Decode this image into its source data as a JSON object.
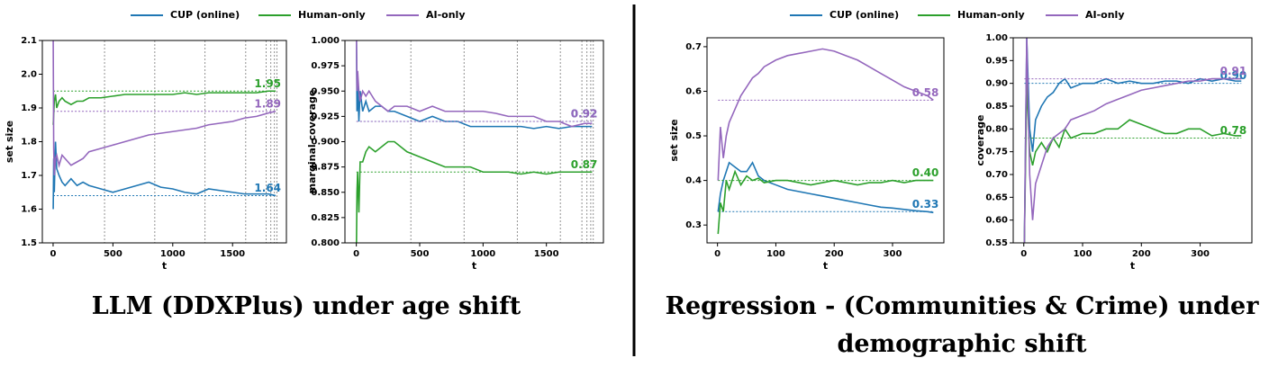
{
  "chart_data": [
    {
      "type": "line",
      "ylabel": "set size",
      "xlabel": "t",
      "legend": true,
      "xlim": [
        -90,
        1950
      ],
      "xticks": [
        0,
        500,
        1000,
        1500
      ],
      "ylim": [
        1.5,
        2.1
      ],
      "yticks": [
        1.5,
        1.6,
        1.7,
        1.8,
        1.9,
        {
          "value": 2.0,
          "label": "2.0"
        },
        2.1
      ],
      "vlines": [
        430,
        850,
        1270,
        1610,
        1780,
        1820,
        1850,
        1870
      ],
      "x": [
        1,
        5,
        10,
        20,
        30,
        50,
        75,
        100,
        150,
        200,
        250,
        300,
        400,
        500,
        600,
        700,
        800,
        900,
        1000,
        1100,
        1200,
        1300,
        1400,
        1500,
        1600,
        1700,
        1800,
        1860
      ],
      "series": [
        {
          "name": "CUP (online)",
          "color": "#1f77b4",
          "end_value": 1.64,
          "values": [
            1.6,
            1.75,
            1.65,
            1.8,
            1.72,
            1.7,
            1.68,
            1.67,
            1.69,
            1.67,
            1.68,
            1.67,
            1.66,
            1.65,
            1.66,
            1.67,
            1.68,
            1.665,
            1.66,
            1.65,
            1.645,
            1.66,
            1.655,
            1.65,
            1.645,
            1.645,
            1.645,
            1.64
          ]
        },
        {
          "name": "Human-only",
          "color": "#2ca02c",
          "end_value": 1.95,
          "values": [
            1.85,
            1.88,
            1.92,
            1.94,
            1.9,
            1.92,
            1.93,
            1.92,
            1.91,
            1.92,
            1.92,
            1.93,
            1.93,
            1.935,
            1.94,
            1.94,
            1.94,
            1.94,
            1.94,
            1.945,
            1.94,
            1.945,
            1.945,
            1.945,
            1.945,
            1.945,
            1.95,
            1.95
          ]
        },
        {
          "name": "AI-only",
          "color": "#9467bd",
          "end_value": 1.89,
          "values": [
            2.1,
            1.78,
            1.7,
            1.75,
            1.76,
            1.73,
            1.76,
            1.75,
            1.73,
            1.74,
            1.75,
            1.77,
            1.78,
            1.79,
            1.8,
            1.81,
            1.82,
            1.825,
            1.83,
            1.835,
            1.84,
            1.85,
            1.855,
            1.86,
            1.87,
            1.875,
            1.885,
            1.89
          ]
        }
      ]
    },
    {
      "type": "line",
      "ylabel": "marginal coverage",
      "xlabel": "t",
      "legend": false,
      "xlim": [
        -90,
        1950
      ],
      "xticks": [
        0,
        500,
        1000,
        1500
      ],
      "ylim": [
        0.8,
        1.0
      ],
      "yticks": [
        {
          "value": 0.8,
          "label": "0.800"
        },
        0.825,
        {
          "value": 0.85,
          "label": "0.850"
        },
        0.875,
        {
          "value": 0.9,
          "label": "0.900"
        },
        0.925,
        {
          "value": 0.95,
          "label": "0.950"
        },
        0.975,
        {
          "value": 1.0,
          "label": "1.000"
        }
      ],
      "vlines": [
        430,
        850,
        1270,
        1610,
        1780,
        1820,
        1850,
        1870
      ],
      "x": [
        1,
        5,
        10,
        20,
        30,
        50,
        75,
        100,
        150,
        200,
        250,
        300,
        400,
        500,
        600,
        700,
        800,
        900,
        1000,
        1100,
        1200,
        1300,
        1400,
        1500,
        1600,
        1700,
        1800,
        1860
      ],
      "series": [
        {
          "name": "CUP (online)",
          "color": "#1f77b4",
          "end_value": 0.92,
          "values": [
            1.0,
            0.93,
            0.96,
            0.92,
            0.95,
            0.93,
            0.94,
            0.93,
            0.935,
            0.935,
            0.93,
            0.93,
            0.925,
            0.92,
            0.925,
            0.92,
            0.92,
            0.915,
            0.915,
            0.915,
            0.915,
            0.915,
            0.913,
            0.915,
            0.913,
            0.915,
            0.915,
            0.915
          ]
        },
        {
          "name": "Human-only",
          "color": "#2ca02c",
          "end_value": 0.87,
          "values": [
            0.8,
            0.85,
            0.87,
            0.83,
            0.88,
            0.88,
            0.89,
            0.895,
            0.89,
            0.895,
            0.9,
            0.9,
            0.89,
            0.885,
            0.88,
            0.875,
            0.875,
            0.875,
            0.87,
            0.87,
            0.87,
            0.868,
            0.87,
            0.868,
            0.87,
            0.87,
            0.87,
            0.87
          ]
        },
        {
          "name": "AI-only",
          "color": "#9467bd",
          "end_value": 0.92,
          "values": [
            1.0,
            0.95,
            0.97,
            0.95,
            0.94,
            0.95,
            0.945,
            0.95,
            0.94,
            0.935,
            0.93,
            0.935,
            0.935,
            0.93,
            0.935,
            0.93,
            0.93,
            0.93,
            0.93,
            0.928,
            0.925,
            0.925,
            0.925,
            0.92,
            0.92,
            0.915,
            0.918,
            0.918
          ]
        }
      ]
    },
    {
      "type": "line",
      "ylabel": "set size",
      "xlabel": "t",
      "legend": true,
      "xlim": [
        -18,
        388
      ],
      "xticks": [
        0,
        100,
        200,
        300
      ],
      "ylim": [
        0.26,
        0.72
      ],
      "yticks": [
        0.3,
        0.4,
        0.5,
        0.6,
        0.7
      ],
      "x": [
        1,
        5,
        10,
        15,
        20,
        30,
        40,
        50,
        60,
        70,
        80,
        100,
        120,
        140,
        160,
        180,
        200,
        220,
        240,
        260,
        280,
        300,
        320,
        340,
        360,
        370
      ],
      "series": [
        {
          "name": "CUP (online)",
          "color": "#1f77b4",
          "end_value": 0.33,
          "values": [
            0.33,
            0.37,
            0.4,
            0.42,
            0.44,
            0.43,
            0.42,
            0.42,
            0.44,
            0.41,
            0.4,
            0.39,
            0.38,
            0.375,
            0.37,
            0.365,
            0.36,
            0.355,
            0.35,
            0.345,
            0.34,
            0.338,
            0.335,
            0.332,
            0.33,
            0.328
          ]
        },
        {
          "name": "Human-only",
          "color": "#2ca02c",
          "end_value": 0.4,
          "end_label": "0.40",
          "values": [
            0.28,
            0.35,
            0.33,
            0.4,
            0.38,
            0.42,
            0.39,
            0.41,
            0.4,
            0.405,
            0.395,
            0.4,
            0.4,
            0.395,
            0.39,
            0.395,
            0.4,
            0.395,
            0.39,
            0.395,
            0.395,
            0.4,
            0.395,
            0.4,
            0.4,
            0.4
          ]
        },
        {
          "name": "AI-only",
          "color": "#9467bd",
          "end_value": 0.58,
          "values": [
            0.4,
            0.52,
            0.45,
            0.5,
            0.53,
            0.56,
            0.59,
            0.61,
            0.63,
            0.64,
            0.655,
            0.67,
            0.68,
            0.685,
            0.69,
            0.695,
            0.69,
            0.68,
            0.67,
            0.655,
            0.64,
            0.625,
            0.61,
            0.6,
            0.59,
            0.58
          ]
        }
      ]
    },
    {
      "type": "line",
      "ylabel": "coverage",
      "xlabel": "t",
      "legend": false,
      "xlim": [
        -18,
        388
      ],
      "xticks": [
        0,
        100,
        200,
        300
      ],
      "ylim": [
        0.55,
        1.0
      ],
      "yticks": [
        0.55,
        {
          "value": 0.6,
          "label": "0.60"
        },
        0.65,
        {
          "value": 0.7,
          "label": "0.70"
        },
        0.75,
        {
          "value": 0.8,
          "label": "0.80"
        },
        0.85,
        {
          "value": 0.9,
          "label": "0.90"
        },
        0.95,
        {
          "value": 1.0,
          "label": "1.00"
        }
      ],
      "x": [
        1,
        5,
        10,
        15,
        20,
        30,
        40,
        50,
        60,
        70,
        80,
        100,
        120,
        140,
        160,
        180,
        200,
        220,
        240,
        260,
        280,
        300,
        320,
        340,
        360,
        370
      ],
      "series": [
        {
          "name": "CUP (online)",
          "color": "#1f77b4",
          "end_value": 0.9,
          "end_label": "0.90",
          "values": [
            0.55,
            1.0,
            0.8,
            0.75,
            0.82,
            0.85,
            0.87,
            0.88,
            0.9,
            0.91,
            0.89,
            0.9,
            0.9,
            0.91,
            0.9,
            0.905,
            0.9,
            0.9,
            0.905,
            0.905,
            0.9,
            0.91,
            0.905,
            0.91,
            0.905,
            0.905
          ]
        },
        {
          "name": "Human-only",
          "color": "#2ca02c",
          "end_value": 0.78,
          "values": [
            0.55,
            0.9,
            0.75,
            0.72,
            0.75,
            0.77,
            0.75,
            0.78,
            0.76,
            0.8,
            0.78,
            0.79,
            0.79,
            0.8,
            0.8,
            0.82,
            0.81,
            0.8,
            0.79,
            0.79,
            0.8,
            0.8,
            0.785,
            0.79,
            0.785,
            0.785
          ]
        },
        {
          "name": "AI-only",
          "color": "#9467bd",
          "end_value": 0.91,
          "values": [
            0.55,
            1.0,
            0.7,
            0.6,
            0.68,
            0.72,
            0.76,
            0.78,
            0.79,
            0.8,
            0.82,
            0.83,
            0.84,
            0.855,
            0.865,
            0.875,
            0.885,
            0.89,
            0.895,
            0.9,
            0.905,
            0.905,
            0.91,
            0.91,
            0.91,
            0.91
          ]
        }
      ]
    }
  ],
  "captions": [
    "LLM (DDXPlus) under age shift",
    "Regression - (Communities & Crime) under demographic shift"
  ]
}
